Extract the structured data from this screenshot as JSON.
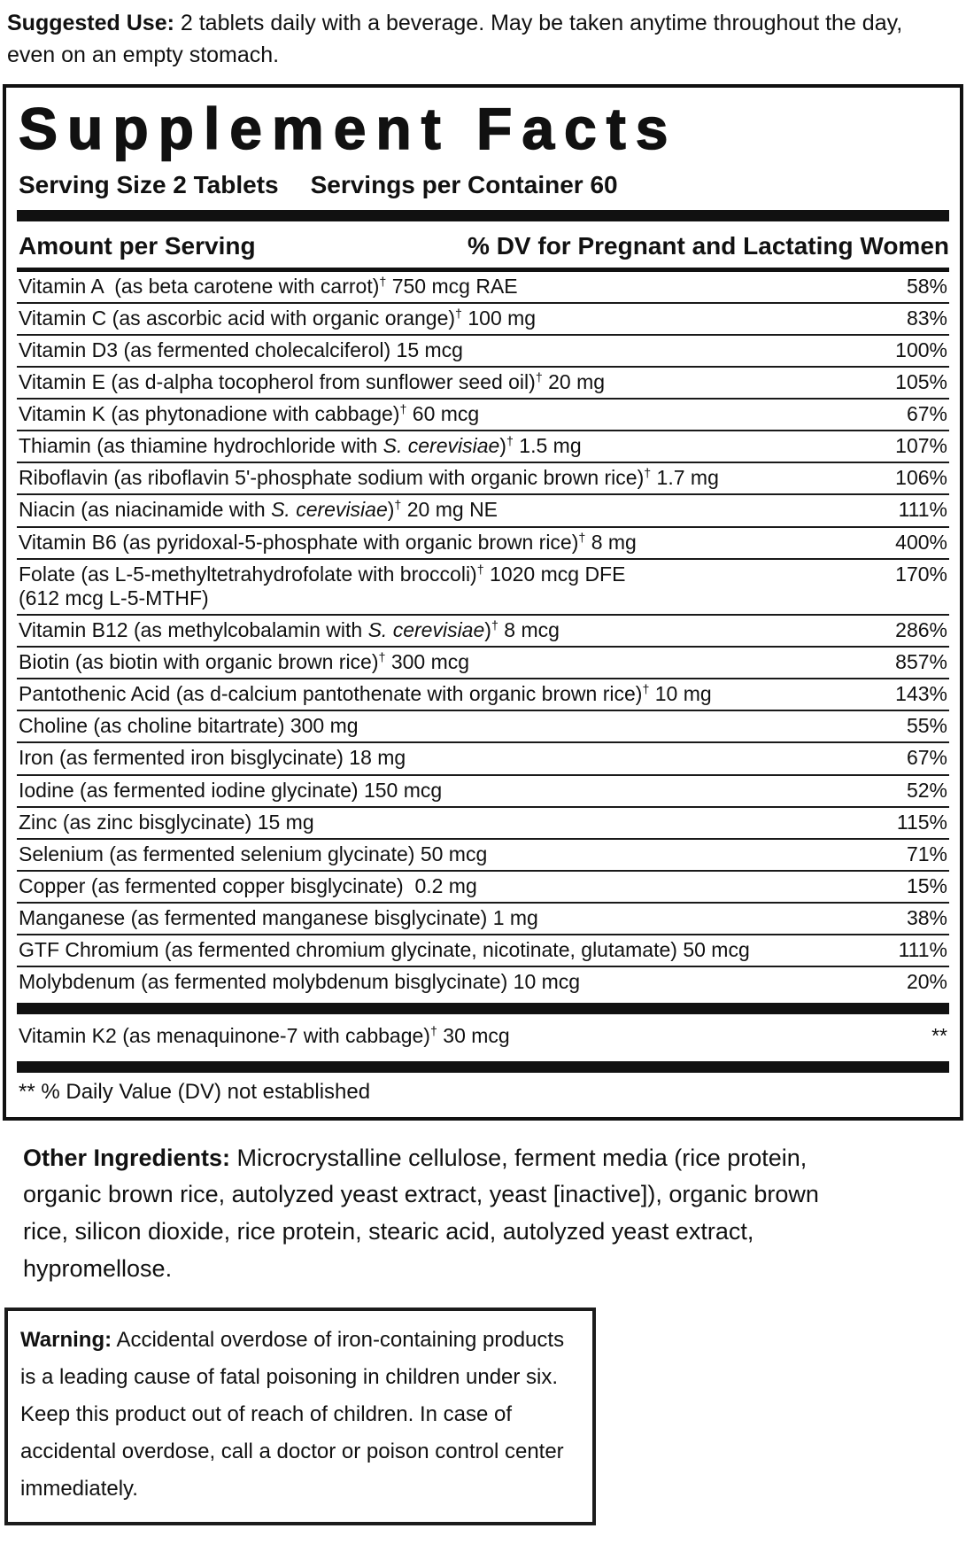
{
  "suggested_use": {
    "label": "Suggested Use:",
    "text": "2 tablets daily with a beverage. May be taken anytime throughout the day, even on an empty stomach."
  },
  "panel": {
    "title": "Supplement Facts",
    "serving_size": "Serving Size 2 Tablets",
    "servings_per_container": "Servings per Container 60",
    "columns": {
      "left": "Amount per Serving",
      "right": "% DV for Pregnant and Lactating Women"
    },
    "rows": [
      {
        "name": [
          {
            "t": "Vitamin A  (as beta carotene with carrot)"
          },
          {
            "t": "†",
            "sup": true
          },
          {
            "t": " 750 mcg RAE"
          }
        ],
        "dv": "58%"
      },
      {
        "name": [
          {
            "t": "Vitamin C (as ascorbic acid with organic orange)"
          },
          {
            "t": "†",
            "sup": true
          },
          {
            "t": " 100 mg"
          }
        ],
        "dv": "83%"
      },
      {
        "name": [
          {
            "t": "Vitamin D3 (as fermented cholecalciferol) 15 mcg"
          }
        ],
        "dv": "100%"
      },
      {
        "name": [
          {
            "t": "Vitamin E (as d-alpha tocopherol from sunflower seed oil)"
          },
          {
            "t": "†",
            "sup": true
          },
          {
            "t": " 20 mg"
          }
        ],
        "dv": "105%"
      },
      {
        "name": [
          {
            "t": "Vitamin K (as phytonadione with cabbage)"
          },
          {
            "t": "†",
            "sup": true
          },
          {
            "t": " 60 mcg"
          }
        ],
        "dv": "67%"
      },
      {
        "name": [
          {
            "t": "Thiamin (as thiamine hydrochloride with "
          },
          {
            "t": "S. cerevisiae",
            "i": true
          },
          {
            "t": ")"
          },
          {
            "t": "†",
            "sup": true
          },
          {
            "t": " 1.5 mg"
          }
        ],
        "dv": "107%"
      },
      {
        "name": [
          {
            "t": "Riboflavin (as riboflavin 5'-phosphate sodium with organic brown rice)"
          },
          {
            "t": "†",
            "sup": true
          },
          {
            "t": " 1.7 mg"
          }
        ],
        "dv": "106%"
      },
      {
        "name": [
          {
            "t": "Niacin (as niacinamide with "
          },
          {
            "t": "S. cerevisiae",
            "i": true
          },
          {
            "t": ")"
          },
          {
            "t": "†",
            "sup": true
          },
          {
            "t": " 20 mg NE"
          }
        ],
        "dv": "111%"
      },
      {
        "name": [
          {
            "t": "Vitamin B6 (as pyridoxal-5-phosphate with organic brown rice)"
          },
          {
            "t": "†",
            "sup": true
          },
          {
            "t": " 8 mg"
          }
        ],
        "dv": "400%"
      },
      {
        "name": [
          {
            "t": "Folate (as L-5-methyltetrahydrofolate with broccoli)"
          },
          {
            "t": "†",
            "sup": true
          },
          {
            "t": " 1020 mcg DFE"
          },
          {
            "br": true
          },
          {
            "t": "(612 mcg L-5-MTHF)"
          }
        ],
        "dv": "170%"
      },
      {
        "name": [
          {
            "t": "Vitamin B12 (as methylcobalamin with "
          },
          {
            "t": "S. cerevisiae",
            "i": true
          },
          {
            "t": ")"
          },
          {
            "t": "†",
            "sup": true
          },
          {
            "t": " 8 mcg"
          }
        ],
        "dv": "286%"
      },
      {
        "name": [
          {
            "t": "Biotin (as biotin with organic brown rice)"
          },
          {
            "t": "†",
            "sup": true
          },
          {
            "t": " 300 mcg"
          }
        ],
        "dv": "857%"
      },
      {
        "name": [
          {
            "t": "Pantothenic Acid (as d-calcium pantothenate with organic brown rice)"
          },
          {
            "t": "†",
            "sup": true
          },
          {
            "t": " 10 mg"
          }
        ],
        "dv": "143%"
      },
      {
        "name": [
          {
            "t": "Choline (as choline bitartrate) 300 mg"
          }
        ],
        "dv": "55%"
      },
      {
        "name": [
          {
            "t": "Iron (as fermented iron bisglycinate) 18 mg"
          }
        ],
        "dv": "67%"
      },
      {
        "name": [
          {
            "t": "Iodine (as fermented iodine glycinate) 150 mcg"
          }
        ],
        "dv": "52%"
      },
      {
        "name": [
          {
            "t": "Zinc (as zinc bisglycinate) 15 mg"
          }
        ],
        "dv": "115%"
      },
      {
        "name": [
          {
            "t": "Selenium (as fermented selenium glycinate) 50 mcg"
          }
        ],
        "dv": "71%"
      },
      {
        "name": [
          {
            "t": "Copper (as fermented copper bisglycinate)  0.2 mg"
          }
        ],
        "dv": "15%"
      },
      {
        "name": [
          {
            "t": "Manganese (as fermented manganese bisglycinate) 1 mg"
          }
        ],
        "dv": "38%"
      },
      {
        "name": [
          {
            "t": "GTF Chromium (as fermented chromium glycinate, nicotinate, glutamate) 50 mcg"
          }
        ],
        "dv": "111%"
      },
      {
        "name": [
          {
            "t": "Molybdenum (as fermented molybdenum bisglycinate) 10 mcg"
          }
        ],
        "dv": "20%"
      }
    ],
    "no_dv_rows": [
      {
        "name": [
          {
            "t": "Vitamin K2 (as menaquinone-7 with cabbage)"
          },
          {
            "t": "†",
            "sup": true
          },
          {
            "t": " 30 mcg"
          }
        ],
        "dv": "**"
      }
    ],
    "footnote": "** % Daily Value (DV) not established"
  },
  "other_ingredients": {
    "label": "Other Ingredients:",
    "text": "Microcrystalline cellulose, ferment media (rice protein, organic brown rice, autolyzed yeast extract, yeast [inactive]), organic brown rice, silicon dioxide, rice protein, stearic acid, autolyzed yeast extract, hypromellose."
  },
  "warning": {
    "label": "Warning:",
    "text": "Accidental overdose of iron-containing products is a leading cause of fatal poisoning in children under six. Keep this product out of reach of children. In case of accidental overdose, call a doctor or poison control center immediately."
  }
}
